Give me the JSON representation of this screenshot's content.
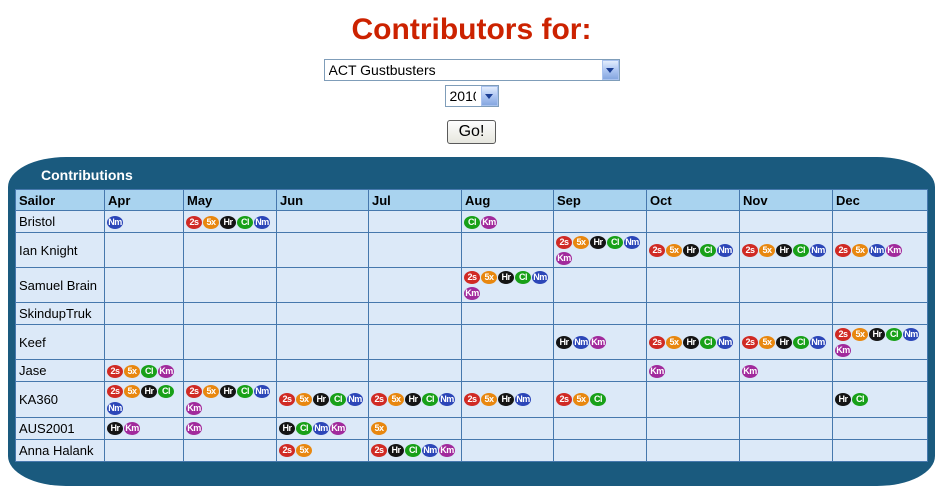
{
  "page": {
    "title": "Contributors for:"
  },
  "controls": {
    "club_select": {
      "value": "ACT Gustbusters",
      "options": [
        "ACT Gustbusters"
      ]
    },
    "year_select": {
      "value": "2010",
      "options": [
        "2010"
      ]
    },
    "go_button": "Go!"
  },
  "panel": {
    "title": "Contributions"
  },
  "table": {
    "columns": [
      "Sailor",
      "Apr",
      "May",
      "Jun",
      "Jul",
      "Aug",
      "Sep",
      "Oct",
      "Nov",
      "Dec"
    ],
    "badge_types": {
      "2s": "#d02a24",
      "5x": "#e8870f",
      "Hr": "#141414",
      "Cl": "#18a018",
      "Nm": "#2c46b8",
      "Km": "#a12a9c"
    },
    "rows": [
      {
        "sailor": "Bristol",
        "cells": [
          [
            "Nm"
          ],
          [
            "2s",
            "5x",
            "Hr",
            "Cl",
            "Nm"
          ],
          [],
          [],
          [
            "Cl",
            "Km"
          ],
          [],
          [],
          [],
          []
        ]
      },
      {
        "sailor": "Ian Knight",
        "cells": [
          [],
          [],
          [],
          [],
          [],
          [
            "2s",
            "5x",
            "Hr",
            "Cl",
            "Nm",
            "Km"
          ],
          [
            "2s",
            "5x",
            "Hr",
            "Cl",
            "Nm"
          ],
          [
            "2s",
            "5x",
            "Hr",
            "Cl",
            "Nm"
          ],
          [
            "2s",
            "5x",
            "Nm",
            "Km"
          ]
        ]
      },
      {
        "sailor": "Samuel Brain",
        "cells": [
          [],
          [],
          [],
          [],
          [
            "2s",
            "5x",
            "Hr",
            "Cl",
            "Nm",
            "Km"
          ],
          [],
          [],
          [],
          []
        ]
      },
      {
        "sailor": "SkindupTruk",
        "cells": [
          [],
          [],
          [],
          [],
          [],
          [],
          [],
          [],
          []
        ]
      },
      {
        "sailor": "Keef",
        "cells": [
          [],
          [],
          [],
          [],
          [],
          [
            "Hr",
            "Nm",
            "Km"
          ],
          [
            "2s",
            "5x",
            "Hr",
            "Cl",
            "Nm"
          ],
          [
            "2s",
            "5x",
            "Hr",
            "Cl",
            "Nm"
          ],
          [
            "2s",
            "5x",
            "Hr",
            "Cl",
            "Nm",
            "Km"
          ]
        ]
      },
      {
        "sailor": "Jase",
        "cells": [
          [
            "2s",
            "5x",
            "Cl",
            "Km"
          ],
          [],
          [],
          [],
          [],
          [],
          [
            "Km"
          ],
          [
            "Km"
          ],
          []
        ]
      },
      {
        "sailor": "KA360",
        "cells": [
          [
            "2s",
            "5x",
            "Hr",
            "Cl",
            "Nm"
          ],
          [
            "2s",
            "5x",
            "Hr",
            "Cl",
            "Nm",
            "Km"
          ],
          [
            "2s",
            "5x",
            "Hr",
            "Cl",
            "Nm"
          ],
          [
            "2s",
            "5x",
            "Hr",
            "Cl",
            "Nm"
          ],
          [
            "2s",
            "5x",
            "Hr",
            "Nm"
          ],
          [
            "2s",
            "5x",
            "Cl"
          ],
          [],
          [],
          [
            "Hr",
            "Cl"
          ]
        ]
      },
      {
        "sailor": "AUS2001",
        "cells": [
          [
            "Hr",
            "Km"
          ],
          [
            "Km"
          ],
          [
            "Hr",
            "Cl",
            "Nm",
            "Km"
          ],
          [
            "5x"
          ],
          [],
          [],
          [],
          [],
          []
        ]
      },
      {
        "sailor": "Anna Halank",
        "cells": [
          [],
          [],
          [
            "2s",
            "5x"
          ],
          [
            "2s",
            "Hr",
            "Cl",
            "Nm",
            "Km"
          ],
          [],
          [],
          [],
          [],
          []
        ]
      }
    ]
  }
}
